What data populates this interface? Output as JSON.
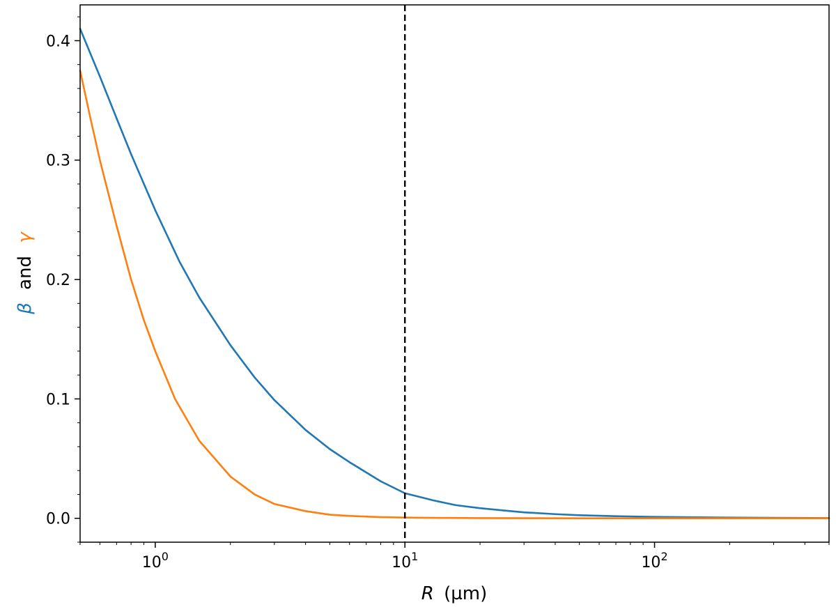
{
  "chart_data": {
    "type": "line",
    "xscale": "log",
    "xlim": [
      0.5,
      500
    ],
    "ylim": [
      -0.02,
      0.43
    ],
    "grid": false,
    "xlabel": {
      "symbol": "R",
      "unit": "(µm)"
    },
    "ylabel": {
      "parts": [
        {
          "text": "β",
          "color": "#1f77b4"
        },
        {
          "text": "and",
          "color": "#000000"
        },
        {
          "text": "γ",
          "color": "#ff7f0e"
        }
      ]
    },
    "xticks": [
      {
        "value": 1,
        "base": "10",
        "exp": "0"
      },
      {
        "value": 10,
        "base": "10",
        "exp": "1"
      },
      {
        "value": 100,
        "base": "10",
        "exp": "2"
      }
    ],
    "yticks": [
      {
        "value": 0.0,
        "label": "0.0"
      },
      {
        "value": 0.1,
        "label": "0.1"
      },
      {
        "value": 0.2,
        "label": "0.2"
      },
      {
        "value": 0.3,
        "label": "0.3"
      },
      {
        "value": 0.4,
        "label": "0.4"
      }
    ],
    "vline": {
      "x": 10,
      "style": "dashed",
      "color": "#000000"
    },
    "series": [
      {
        "color": "#1f77b4",
        "x": [
          0.5,
          0.6,
          0.7,
          0.8,
          1,
          1.25,
          1.5,
          2,
          2.5,
          3,
          4,
          5,
          6,
          8,
          10,
          13,
          16,
          20,
          25,
          30,
          40,
          50,
          70,
          100,
          150,
          200,
          300,
          500
        ],
        "y": [
          0.41,
          0.37,
          0.335,
          0.305,
          0.258,
          0.215,
          0.185,
          0.145,
          0.118,
          0.099,
          0.074,
          0.058,
          0.047,
          0.031,
          0.021,
          0.015,
          0.011,
          0.0085,
          0.0065,
          0.005,
          0.0035,
          0.0026,
          0.0018,
          0.0012,
          0.0008,
          0.0006,
          0.0004,
          0.0002
        ]
      },
      {
        "color": "#ff7f0e",
        "x": [
          0.5,
          0.55,
          0.6,
          0.7,
          0.8,
          0.9,
          1,
          1.2,
          1.5,
          2,
          2.5,
          3,
          4,
          5,
          6,
          8,
          10,
          15,
          20,
          30,
          50,
          100,
          200,
          500
        ],
        "y": [
          0.375,
          0.335,
          0.3,
          0.245,
          0.2,
          0.166,
          0.14,
          0.1,
          0.065,
          0.035,
          0.02,
          0.012,
          0.006,
          0.003,
          0.002,
          0.001,
          0.0006,
          0.0003,
          0.0002,
          0.0001,
          5e-05,
          2e-05,
          1e-05,
          0.0
        ]
      }
    ]
  }
}
